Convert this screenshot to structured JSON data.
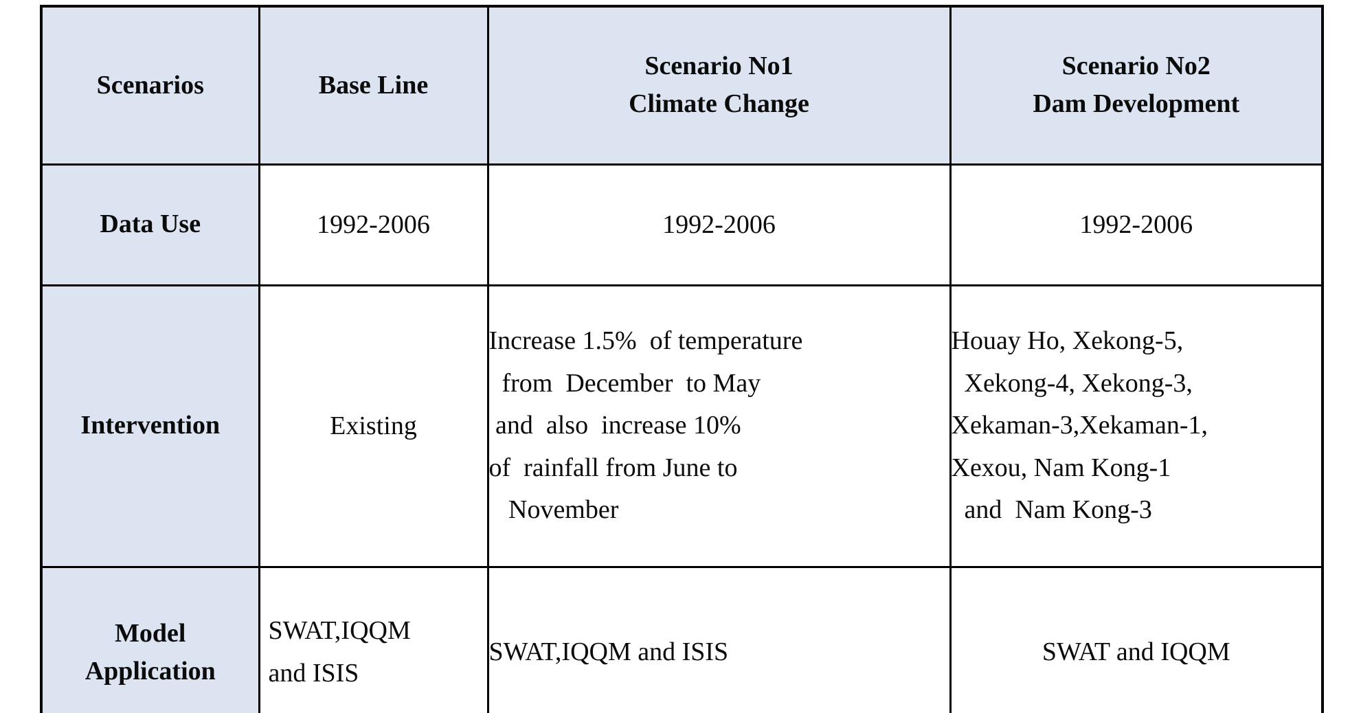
{
  "table": {
    "colors": {
      "header_bg": "#dbe4f0",
      "border": "#000000",
      "text": "#0b0b0b",
      "page_bg": "#ffffff"
    },
    "columns": [
      {
        "label": "Scenarios"
      },
      {
        "label": "Base Line"
      },
      {
        "label": "Scenario No1\nClimate Change"
      },
      {
        "label": "Scenario No2\nDam Development"
      }
    ],
    "rows": [
      {
        "label": "Data Use",
        "cells": [
          "1992-2006",
          "1992-2006",
          "1992-2006"
        ]
      },
      {
        "label": "Intervention",
        "cells": [
          "Existing",
          "Increase 1.5%  of temperature\n  from  December  to May\n and  also  increase 10%\nof  rainfall from June to\n   November",
          "Houay Ho, Xekong-5,\n  Xekong-4, Xekong-3,\nXekaman-3,Xekaman-1,\nXexou, Nam Kong-1\n  and  Nam Kong-3"
        ]
      },
      {
        "label": "Model\nApplication",
        "cells": [
          "SWAT,IQQM\nand ISIS",
          "SWAT,IQQM and ISIS",
          "SWAT and IQQM"
        ]
      }
    ]
  }
}
